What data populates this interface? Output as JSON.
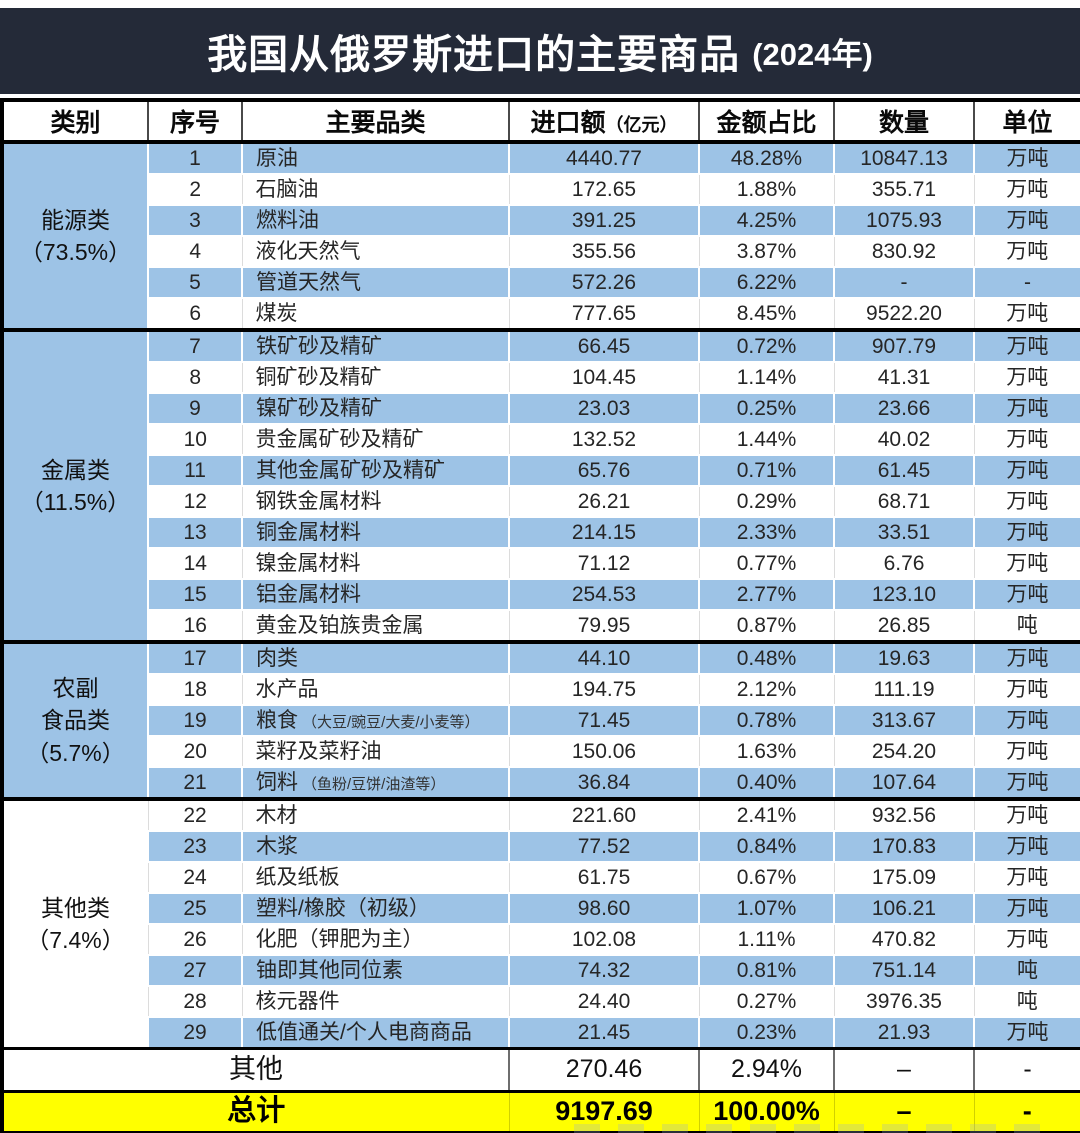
{
  "chart_data": {
    "type": "table",
    "title_main": "我国从俄罗斯进口的主要商品",
    "title_year": "(2024年)",
    "header": {
      "category": "类别",
      "seq": "序号",
      "name": "主要品类",
      "amount": "进口额",
      "amount_sub": "（亿元）",
      "share": "金额占比",
      "qty": "数量",
      "unit": "单位"
    },
    "sections": [
      {
        "label_lines": [
          "能源类",
          "（73.5%）"
        ],
        "rows": [
          {
            "seq": "1",
            "name": "原油",
            "amount": "4440.77",
            "share": "48.28%",
            "qty": "10847.13",
            "unit": "万吨"
          },
          {
            "seq": "2",
            "name": "石脑油",
            "amount": "172.65",
            "share": "1.88%",
            "qty": "355.71",
            "unit": "万吨"
          },
          {
            "seq": "3",
            "name": "燃料油",
            "amount": "391.25",
            "share": "4.25%",
            "qty": "1075.93",
            "unit": "万吨"
          },
          {
            "seq": "4",
            "name": "液化天然气",
            "amount": "355.56",
            "share": "3.87%",
            "qty": "830.92",
            "unit": "万吨"
          },
          {
            "seq": "5",
            "name": "管道天然气",
            "amount": "572.26",
            "share": "6.22%",
            "qty": "-",
            "unit": "-"
          },
          {
            "seq": "6",
            "name": "煤炭",
            "amount": "777.65",
            "share": "8.45%",
            "qty": "9522.20",
            "unit": "万吨"
          }
        ]
      },
      {
        "label_lines": [
          "金属类",
          "（11.5%）"
        ],
        "rows": [
          {
            "seq": "7",
            "name": "铁矿砂及精矿",
            "amount": "66.45",
            "share": "0.72%",
            "qty": "907.79",
            "unit": "万吨"
          },
          {
            "seq": "8",
            "name": "铜矿砂及精矿",
            "amount": "104.45",
            "share": "1.14%",
            "qty": "41.31",
            "unit": "万吨"
          },
          {
            "seq": "9",
            "name": "镍矿砂及精矿",
            "amount": "23.03",
            "share": "0.25%",
            "qty": "23.66",
            "unit": "万吨"
          },
          {
            "seq": "10",
            "name": "贵金属矿砂及精矿",
            "amount": "132.52",
            "share": "1.44%",
            "qty": "40.02",
            "unit": "万吨"
          },
          {
            "seq": "11",
            "name": "其他金属矿砂及精矿",
            "amount": "65.76",
            "share": "0.71%",
            "qty": "61.45",
            "unit": "万吨"
          },
          {
            "seq": "12",
            "name": "钢铁金属材料",
            "amount": "26.21",
            "share": "0.29%",
            "qty": "68.71",
            "unit": "万吨"
          },
          {
            "seq": "13",
            "name": "铜金属材料",
            "amount": "214.15",
            "share": "2.33%",
            "qty": "33.51",
            "unit": "万吨"
          },
          {
            "seq": "14",
            "name": "镍金属材料",
            "amount": "71.12",
            "share": "0.77%",
            "qty": "6.76",
            "unit": "万吨"
          },
          {
            "seq": "15",
            "name": "铝金属材料",
            "amount": "254.53",
            "share": "2.77%",
            "qty": "123.10",
            "unit": "万吨"
          },
          {
            "seq": "16",
            "name": "黄金及铂族贵金属",
            "amount": "79.95",
            "share": "0.87%",
            "qty": "26.85",
            "unit": "吨"
          }
        ]
      },
      {
        "label_lines": [
          "农副",
          "食品类",
          "（5.7%）"
        ],
        "rows": [
          {
            "seq": "17",
            "name": "肉类",
            "amount": "44.10",
            "share": "0.48%",
            "qty": "19.63",
            "unit": "万吨"
          },
          {
            "seq": "18",
            "name": "水产品",
            "amount": "194.75",
            "share": "2.12%",
            "qty": "111.19",
            "unit": "万吨"
          },
          {
            "seq": "19",
            "name": "粮食",
            "note": "（大豆/豌豆/大麦/小麦等）",
            "amount": "71.45",
            "share": "0.78%",
            "qty": "313.67",
            "unit": "万吨"
          },
          {
            "seq": "20",
            "name": "菜籽及菜籽油",
            "amount": "150.06",
            "share": "1.63%",
            "qty": "254.20",
            "unit": "万吨"
          },
          {
            "seq": "21",
            "name": "饲料",
            "note": "（鱼粉/豆饼/油渣等）",
            "amount": "36.84",
            "share": "0.40%",
            "qty": "107.64",
            "unit": "万吨"
          }
        ]
      },
      {
        "label_lines": [
          "其他类",
          "（7.4%）"
        ],
        "rows": [
          {
            "seq": "22",
            "name": "木材",
            "amount": "221.60",
            "share": "2.41%",
            "qty": "932.56",
            "unit": "万吨"
          },
          {
            "seq": "23",
            "name": "木浆",
            "amount": "77.52",
            "share": "0.84%",
            "qty": "170.83",
            "unit": "万吨"
          },
          {
            "seq": "24",
            "name": "纸及纸板",
            "amount": "61.75",
            "share": "0.67%",
            "qty": "175.09",
            "unit": "万吨"
          },
          {
            "seq": "25",
            "name": "塑料/橡胶（初级）",
            "amount": "98.60",
            "share": "1.07%",
            "qty": "106.21",
            "unit": "万吨"
          },
          {
            "seq": "26",
            "name": "化肥（钾肥为主）",
            "amount": "102.08",
            "share": "1.11%",
            "qty": "470.82",
            "unit": "万吨"
          },
          {
            "seq": "27",
            "name": "铀即其他同位素",
            "amount": "74.32",
            "share": "0.81%",
            "qty": "751.14",
            "unit": "吨"
          },
          {
            "seq": "28",
            "name": "核元器件",
            "amount": "24.40",
            "share": "0.27%",
            "qty": "3976.35",
            "unit": "吨"
          },
          {
            "seq": "29",
            "name": "低值通关/个人电商商品",
            "amount": "21.45",
            "share": "0.23%",
            "qty": "21.93",
            "unit": "万吨"
          }
        ]
      }
    ],
    "footer": {
      "other": {
        "label": "其他",
        "amount": "270.46",
        "share": "2.94%",
        "qty": "–",
        "unit": "-"
      },
      "total": {
        "label": "总计",
        "amount": "9197.69",
        "share": "100.00%",
        "qty": "–",
        "unit": "-"
      }
    },
    "colors": {
      "row_blue": "#9dc3e6",
      "total_yellow": "#ffff00",
      "title_band": "#242a38"
    }
  }
}
